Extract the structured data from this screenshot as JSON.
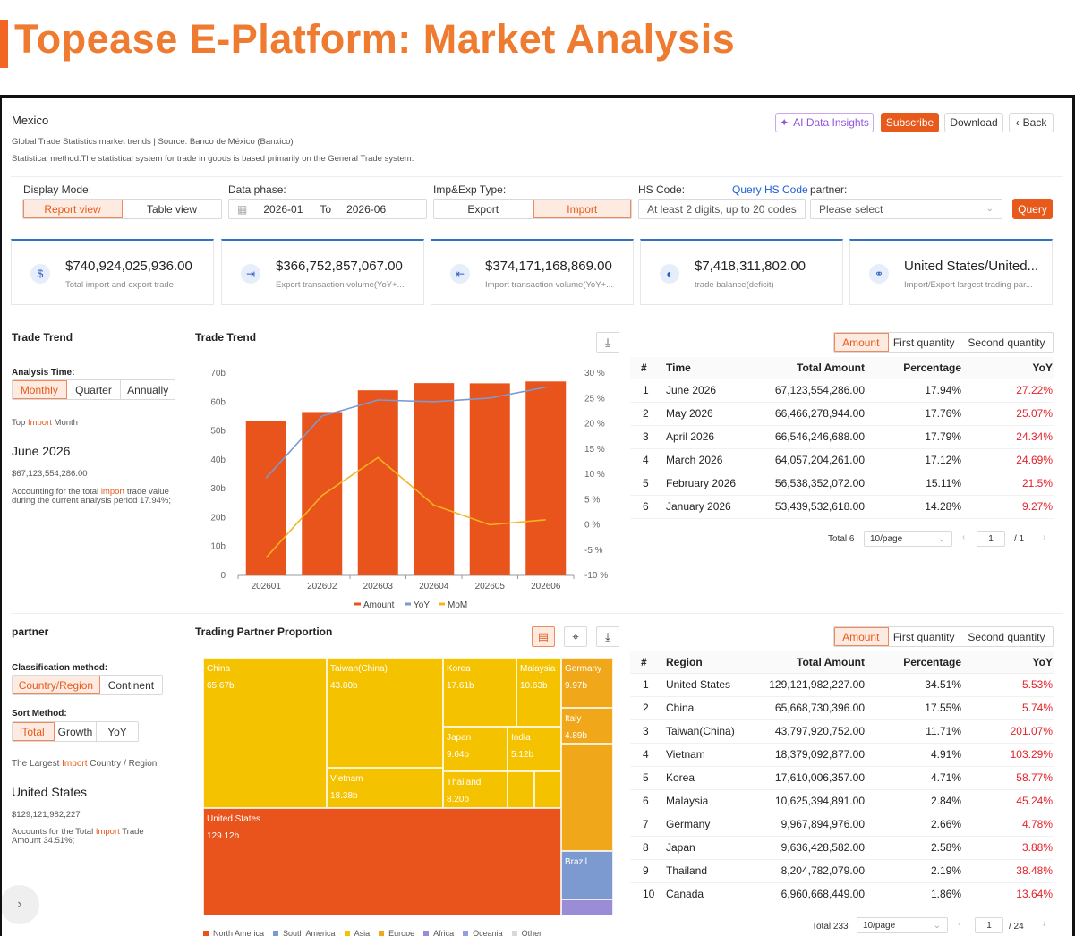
{
  "banner": {
    "title": "Topease E-Platform: Market Analysis"
  },
  "header": {
    "country": "Mexico",
    "line1": "Global Trade Statistics market trends |  Source: Banco de México (Banxico)",
    "line2": "Statistical method:The statistical system for trade in goods is based primarily on the General Trade system.",
    "ai_label": "AI Data Insights",
    "subscribe_label": "Subscribe",
    "download_label": "Download",
    "back_label": "Back"
  },
  "filters": {
    "display_mode_label": "Display Mode:",
    "report_view": "Report view",
    "table_view": "Table view",
    "data_phase_label": "Data phase:",
    "date_from": "2026-01",
    "date_to_word": "To",
    "date_to": "2026-06",
    "imp_exp_label": "Imp&Exp Type:",
    "export_label": "Export",
    "import_label": "Import",
    "hs_label": "HS Code:",
    "query_hs_label": "Query HS Code",
    "hs_placeholder": "At least 2 digits, up to 20 codes",
    "partner_label": "partner:",
    "partner_placeholder": "Please select",
    "query_label": "Query"
  },
  "kpis": [
    {
      "value": "$740,924,025,936.00",
      "label": "Total import and export trade",
      "icon": "dollar-icon"
    },
    {
      "value": "$366,752,857,067.00",
      "label": "Export transaction volume(YoY+...",
      "icon": "export-icon"
    },
    {
      "value": "$374,171,168,869.00",
      "label": "Import transaction volume(YoY+...",
      "icon": "import-icon"
    },
    {
      "value": "$7,418,311,802.00",
      "label": "trade balance(deficit)",
      "icon": "balance-icon"
    },
    {
      "value": "United States/United...",
      "label": "Import/Export largest trading par...",
      "icon": "handshake-icon"
    }
  ],
  "trend": {
    "section_title": "Trade Trend",
    "analysis_time_label": "Analysis Time:",
    "monthly": "Monthly",
    "quarter": "Quarter",
    "annually": "Annually",
    "top_pre": "Top",
    "top_word": "Import",
    "top_post": "Month",
    "top_month": "June 2026",
    "top_value": "$67,123,554,286.00",
    "note_pre": "Accounting for the total",
    "note_word": "import",
    "note_post": "trade value during the current analysis period 17.94%;",
    "chart_title": "Trade Trend",
    "tabs": [
      "Amount",
      "First quantity",
      "Second quantity"
    ],
    "table_headers": [
      "#",
      "Time",
      "Total Amount",
      "Percentage",
      "YoY"
    ],
    "rows": [
      [
        "1",
        "June 2026",
        "67,123,554,286.00",
        "17.94%",
        "27.22%"
      ],
      [
        "2",
        "May 2026",
        "66,466,278,944.00",
        "17.76%",
        "25.07%"
      ],
      [
        "3",
        "April 2026",
        "66,546,246,688.00",
        "17.79%",
        "24.34%"
      ],
      [
        "4",
        "March 2026",
        "64,057,204,261.00",
        "17.12%",
        "24.69%"
      ],
      [
        "5",
        "February 2026",
        "56,538,352,072.00",
        "15.11%",
        "21.5%"
      ],
      [
        "6",
        "January 2026",
        "53,439,532,618.00",
        "14.28%",
        "9.27%"
      ]
    ],
    "pager_total": "Total 6",
    "pager_size": "10/page",
    "pager_page": "1",
    "pager_of": "/ 1"
  },
  "chart_data": {
    "type": "bar",
    "categories": [
      "202601",
      "202602",
      "202603",
      "202604",
      "202605",
      "202606"
    ],
    "series": [
      {
        "name": "Amount",
        "type": "bar",
        "values": [
          53.44,
          56.54,
          64.06,
          66.55,
          66.47,
          67.12
        ]
      },
      {
        "name": "YoY",
        "type": "line",
        "values": [
          9.27,
          21.5,
          24.69,
          24.34,
          25.07,
          27.22
        ]
      },
      {
        "name": "MoM",
        "type": "line",
        "values": [
          -6.5,
          5.8,
          13.3,
          3.9,
          0.0,
          1.0
        ]
      }
    ],
    "y_left_ticks": [
      "0",
      "10b",
      "20b",
      "30b",
      "40b",
      "50b",
      "60b",
      "70b"
    ],
    "y_left_range": [
      0,
      70
    ],
    "y_right_ticks": [
      "-10 %",
      "-5 %",
      "0 %",
      "5 %",
      "10 %",
      "15 %",
      "20 %",
      "25 %",
      "30 %"
    ],
    "y_right_range": [
      -10,
      30
    ],
    "colors": {
      "Amount": "#e8541c",
      "YoY": "#7c9ad0",
      "MoM": "#f5b320"
    }
  },
  "partner": {
    "section_title": "partner",
    "classification_label": "Classification method:",
    "country_region": "Country/Region",
    "continent": "Continent",
    "sort_label": "Sort Method:",
    "total": "Total",
    "growth": "Growth",
    "yoy": "YoY",
    "largest_pre": "The Largest",
    "largest_word": "Import",
    "largest_post": "Country / Region",
    "top_country": "United States",
    "top_value": "$129,121,982,227",
    "note_pre": "Accounts for the Total",
    "note_word": "Import",
    "note_post": "Trade Amount 34.51%;",
    "treemap_title": "Trading Partner Proportion",
    "treemap": [
      {
        "name": "China",
        "value": "65.67b",
        "color": "#f5c200"
      },
      {
        "name": "Taiwan(China)",
        "value": "43.80b",
        "color": "#f5c200"
      },
      {
        "name": "Korea",
        "value": "17.61b",
        "color": "#f5c200"
      },
      {
        "name": "Malaysia",
        "value": "10.63b",
        "color": "#f5c200"
      },
      {
        "name": "Germany",
        "value": "9.97b",
        "color": "#f0a81a"
      },
      {
        "name": "Italy",
        "value": "4.89b",
        "color": "#f0a81a"
      },
      {
        "name": "Japan",
        "value": "9.64b",
        "color": "#f5c200"
      },
      {
        "name": "India",
        "value": "5.12b",
        "color": "#f5c200"
      },
      {
        "name": "Vietnam",
        "value": "18.38b",
        "color": "#f5c200"
      },
      {
        "name": "Thailand",
        "value": "8.20b",
        "color": "#f5c200"
      },
      {
        "name": "United States",
        "value": "129.12b",
        "color": "#e8541c"
      },
      {
        "name": "Brazil",
        "value": "",
        "color": "#7c9ad0"
      }
    ],
    "legend": [
      {
        "name": "North America",
        "color": "#e8541c"
      },
      {
        "name": "South America",
        "color": "#7c9ad0"
      },
      {
        "name": "Asia",
        "color": "#f5c200"
      },
      {
        "name": "Europe",
        "color": "#f0a81a"
      },
      {
        "name": "Africa",
        "color": "#9b8cd8"
      },
      {
        "name": "Oceania",
        "color": "#8fa0e0"
      },
      {
        "name": "Other",
        "color": "#d8d8d8"
      }
    ],
    "tabs": [
      "Amount",
      "First quantity",
      "Second quantity"
    ],
    "table_headers": [
      "#",
      "Region",
      "Total Amount",
      "Percentage",
      "YoY"
    ],
    "rows": [
      [
        "1",
        "United States",
        "129,121,982,227.00",
        "34.51%",
        "5.53%"
      ],
      [
        "2",
        "China",
        "65,668,730,396.00",
        "17.55%",
        "5.74%"
      ],
      [
        "3",
        "Taiwan(China)",
        "43,797,920,752.00",
        "11.71%",
        "201.07%"
      ],
      [
        "4",
        "Vietnam",
        "18,379,092,877.00",
        "4.91%",
        "103.29%"
      ],
      [
        "5",
        "Korea",
        "17,610,006,357.00",
        "4.71%",
        "58.77%"
      ],
      [
        "6",
        "Malaysia",
        "10,625,394,891.00",
        "2.84%",
        "45.24%"
      ],
      [
        "7",
        "Germany",
        "9,967,894,976.00",
        "2.66%",
        "4.78%"
      ],
      [
        "8",
        "Japan",
        "9,636,428,582.00",
        "2.58%",
        "3.88%"
      ],
      [
        "9",
        "Thailand",
        "8,204,782,079.00",
        "2.19%",
        "38.48%"
      ],
      [
        "10",
        "Canada",
        "6,960,668,449.00",
        "1.86%",
        "13.64%"
      ]
    ],
    "pager_total": "Total 233",
    "pager_size": "10/page",
    "pager_page": "1",
    "pager_of": "/ 24"
  }
}
